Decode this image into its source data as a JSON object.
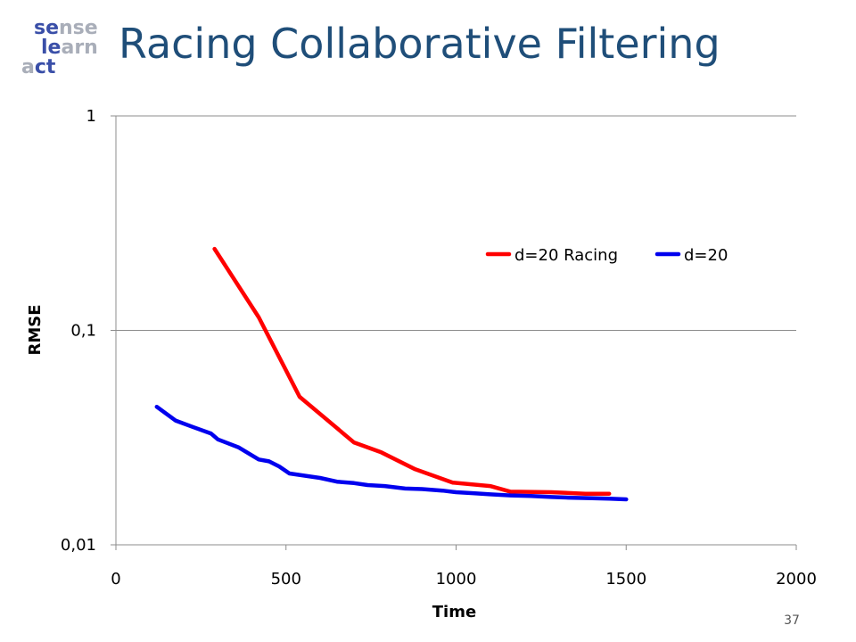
{
  "slide": {
    "title": "Racing Collaborative Filtering",
    "page_number": "37"
  },
  "logo": {
    "lines": [
      "se",
      "nse",
      "le",
      "arn",
      "a",
      "ct"
    ],
    "accent_color": "#3a4fa8",
    "shade_color": "#a9aeb9"
  },
  "chart_data": {
    "type": "line",
    "xlabel": "Time",
    "ylabel": "RMSE",
    "xlim": [
      0,
      2000
    ],
    "ylim": [
      0.01,
      1
    ],
    "y_scale": "log",
    "x_ticks": [
      0,
      500,
      1000,
      1500,
      2000
    ],
    "x_tick_labels": [
      "0",
      "500",
      "1000",
      "1500",
      "2000"
    ],
    "y_ticks": [
      1,
      0.1,
      0.01
    ],
    "y_tick_labels": [
      "1",
      "0,1",
      "0,01"
    ],
    "grid": "horizontal",
    "legend": "top-right",
    "series": [
      {
        "name": "d=20 Racing",
        "color": "#ff0000",
        "x": [
          290,
          420,
          540,
          700,
          780,
          880,
          990,
          1100,
          1160,
          1280,
          1380,
          1450
        ],
        "y": [
          0.24,
          0.115,
          0.049,
          0.03,
          0.027,
          0.0225,
          0.0195,
          0.0188,
          0.0177,
          0.0176,
          0.0173,
          0.0173
        ]
      },
      {
        "name": "d=20",
        "color": "#0000ee",
        "x": [
          120,
          175,
          225,
          280,
          300,
          360,
          420,
          450,
          480,
          510,
          600,
          650,
          700,
          740,
          790,
          850,
          900,
          960,
          1000,
          1050,
          1100,
          1160,
          1220,
          1280,
          1330,
          1400,
          1450,
          1500
        ],
        "y": [
          0.044,
          0.038,
          0.0355,
          0.033,
          0.031,
          0.0285,
          0.025,
          0.0245,
          0.0232,
          0.0215,
          0.0205,
          0.0197,
          0.0194,
          0.019,
          0.0188,
          0.0183,
          0.0182,
          0.0179,
          0.0176,
          0.0174,
          0.0172,
          0.017,
          0.0169,
          0.0167,
          0.0166,
          0.0165,
          0.0164,
          0.0163
        ]
      }
    ]
  }
}
